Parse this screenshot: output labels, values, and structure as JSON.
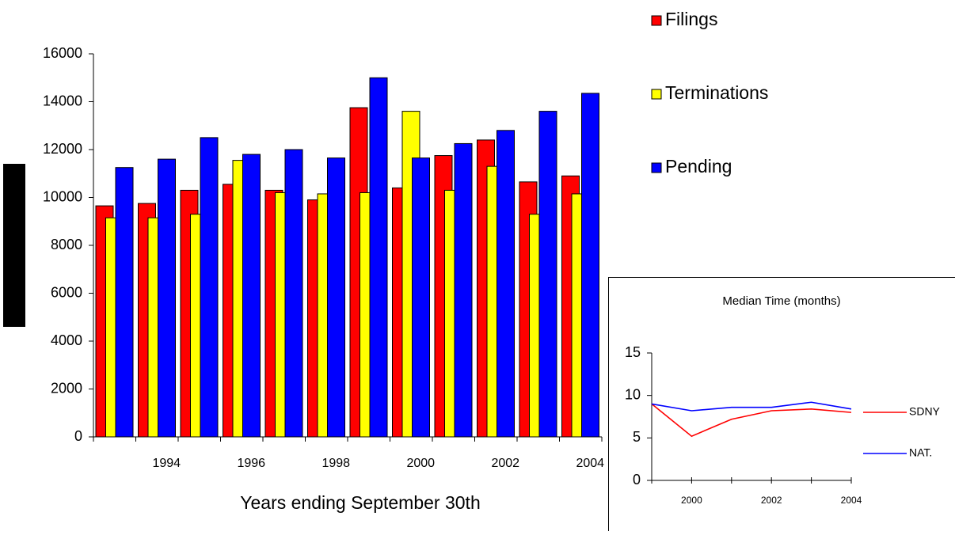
{
  "chart_data": [
    {
      "type": "bar",
      "xlabel": "Years ending September 30th",
      "categories": [
        null,
        "1994",
        null,
        "1996",
        null,
        "1998",
        null,
        "2000",
        null,
        "2002",
        null,
        "2004"
      ],
      "series": [
        {
          "name": "Filings",
          "color": "#ff0000",
          "values": [
            9650,
            9750,
            10300,
            10550,
            10300,
            9900,
            13750,
            10400,
            11750,
            12400,
            10650,
            10900
          ]
        },
        {
          "name": "Terminations",
          "color": "#ffff00",
          "values": [
            9150,
            9150,
            9300,
            11550,
            10200,
            10150,
            10200,
            13600,
            10300,
            11300,
            9300,
            10150
          ]
        },
        {
          "name": "Pending",
          "color": "#0000ff",
          "values": [
            11250,
            11600,
            12500,
            11800,
            12000,
            11650,
            15000,
            11650,
            12250,
            12800,
            13600,
            14350
          ]
        }
      ],
      "ylim": [
        0,
        16000
      ],
      "yticks": [
        0,
        2000,
        4000,
        6000,
        8000,
        10000,
        12000,
        14000,
        16000
      ]
    },
    {
      "type": "line",
      "title": "Median Time (months)",
      "categories": [
        null,
        "2000",
        null,
        "2002",
        null,
        "2004"
      ],
      "series": [
        {
          "name": "SDNY",
          "color": "#ff0000",
          "values": [
            9,
            5.2,
            7.2,
            8.2,
            8.4,
            8.0
          ]
        },
        {
          "name": "NAT.",
          "color": "#0000ff",
          "values": [
            9,
            8.2,
            8.6,
            8.6,
            9.2,
            8.4
          ]
        }
      ],
      "ylim": [
        0,
        15
      ],
      "yticks": [
        0,
        5,
        10,
        15
      ]
    }
  ]
}
